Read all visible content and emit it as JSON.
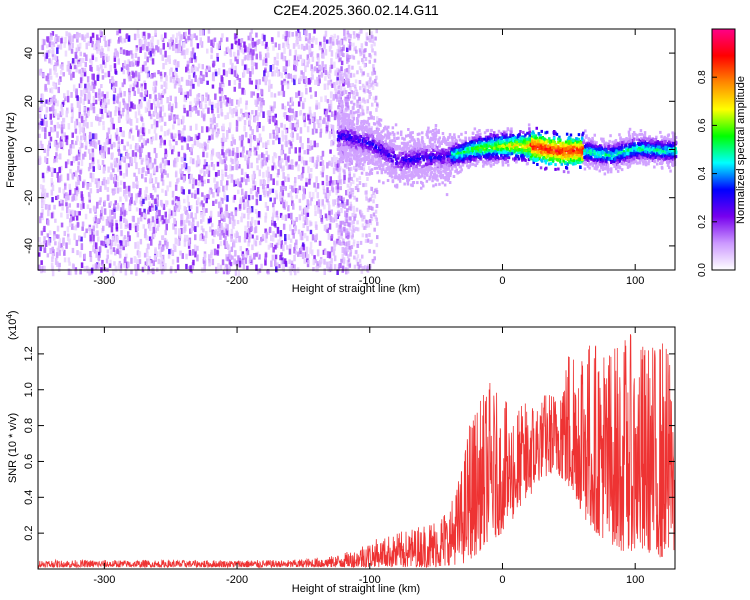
{
  "title": "C2E4.2025.360.02.14.G11",
  "chart_data": [
    {
      "type": "heatmap",
      "title": "C2E4.2025.360.02.14.G11",
      "xlabel": "Height of straight line (km)",
      "ylabel": "Frequency (Hz)",
      "xlim": [
        -350,
        130
      ],
      "ylim": [
        -50,
        50
      ],
      "xticks": [
        -300,
        -200,
        -100,
        0,
        100
      ],
      "xtick_labels": [
        "-300",
        "-200",
        "-100",
        "0",
        "100"
      ],
      "yticks": [
        -40,
        -20,
        0,
        20,
        40
      ],
      "ytick_labels": [
        "-40",
        "-20",
        "0",
        "20",
        "40"
      ],
      "grid": false,
      "colorbar": {
        "label": "Normalized spectral amplitude",
        "range": [
          0,
          1
        ],
        "ticks": [
          0.0,
          0.2,
          0.4,
          0.6,
          0.8
        ],
        "tick_labels": [
          "0.0",
          "0.2",
          "0.4",
          "0.6",
          "0.8"
        ],
        "colors": [
          "#ffffff",
          "#cc99ff",
          "#7700ee",
          "#0000ff",
          "#00ffff",
          "#00ff00",
          "#ffff00",
          "#ff8800",
          "#ff0000",
          "#ff0088"
        ]
      },
      "regions": [
        {
          "name": "noise",
          "x_range": [
            -350,
            -115
          ],
          "freq_range": [
            -50,
            50
          ],
          "amplitude": [
            0.05,
            0.25
          ]
        },
        {
          "name": "ridge-onset",
          "x_range": [
            -125,
            -40
          ],
          "freq_range": [
            -8,
            12
          ],
          "amplitude": [
            0.15,
            0.45
          ]
        },
        {
          "name": "ridge",
          "x_range": [
            -40,
            130
          ],
          "freq_center": 0,
          "amplitude": [
            0.3,
            0.95
          ]
        }
      ],
      "ridge_center": {
        "x": [
          -120,
          -100,
          -80,
          -60,
          -40,
          -20,
          0,
          20,
          40,
          60,
          80,
          100,
          120,
          130
        ],
        "freq": [
          6,
          3,
          -4,
          -3,
          -2,
          1,
          2,
          2,
          0,
          0,
          -2,
          1,
          0,
          0
        ]
      }
    },
    {
      "type": "line",
      "xlabel": "Height of straight line (km)",
      "ylabel": "SNR (10 * v/v)",
      "y_multiplier": "(x10",
      "y_multiplier_exp": "4",
      "y_multiplier_close": ")",
      "xlim": [
        -350,
        130
      ],
      "ylim": [
        0,
        1.35
      ],
      "xticks": [
        -300,
        -200,
        -100,
        0,
        100
      ],
      "xtick_labels": [
        "-300",
        "-200",
        "-100",
        "0",
        "100"
      ],
      "yticks": [
        0.2,
        0.4,
        0.6,
        0.8,
        1.0,
        1.2
      ],
      "ytick_labels": [
        "0.2",
        "0.4",
        "0.6",
        "0.8",
        "1.0",
        "1.2"
      ],
      "grid": false,
      "series": [
        {
          "name": "SNR",
          "color": "#ee3333",
          "envelope": {
            "x": [
              -350,
              -160,
              -130,
              -115,
              -100,
              -80,
              -60,
              -50,
              -40,
              -30,
              -25,
              -20,
              -10,
              0,
              10,
              20,
              30,
              40,
              50,
              60,
              70,
              80,
              90,
              100,
              110,
              120,
              130
            ],
            "low": [
              0.01,
              0.01,
              0.01,
              0.01,
              0.01,
              0.01,
              0.01,
              0.01,
              0.02,
              0.03,
              0.05,
              0.08,
              0.15,
              0.2,
              0.3,
              0.4,
              0.5,
              0.55,
              0.45,
              0.3,
              0.2,
              0.15,
              0.1,
              0.1,
              0.08,
              0.06,
              0.05
            ],
            "high": [
              0.05,
              0.05,
              0.07,
              0.1,
              0.16,
              0.2,
              0.25,
              0.28,
              0.35,
              0.6,
              0.85,
              0.9,
              1.05,
              0.95,
              0.9,
              0.95,
              0.98,
              1.0,
              1.25,
              1.35,
              1.3,
              1.25,
              1.3,
              1.32,
              1.25,
              1.3,
              1.2
            ]
          }
        }
      ]
    }
  ]
}
